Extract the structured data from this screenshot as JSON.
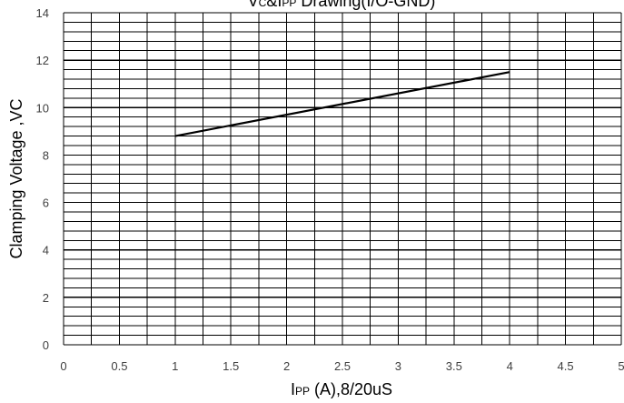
{
  "chart_data": {
    "type": "line",
    "title": {
      "parts": [
        {
          "text": "V",
          "small": false
        },
        {
          "text": "C",
          "small": true
        },
        {
          "text": "&I",
          "small": false
        },
        {
          "text": "PP",
          "small": true
        },
        {
          "text": " Drawing(I/O-GND)",
          "small": false
        }
      ]
    },
    "xlabel": {
      "parts": [
        {
          "text": "I",
          "small": false
        },
        {
          "text": "PP",
          "small": true
        },
        {
          "text": " (A),8/20uS",
          "small": false
        }
      ]
    },
    "ylabel": "Clamping Voltage ,VC",
    "xlim": [
      0,
      5
    ],
    "ylim": [
      0,
      14
    ],
    "x_ticks": [
      0,
      0.5,
      1,
      1.5,
      2,
      2.5,
      3,
      3.5,
      4,
      4.5,
      5
    ],
    "x_tick_labels": [
      "0",
      "0.5",
      "1",
      "1.5",
      "2",
      "2.5",
      "3",
      "3.5",
      "4",
      "4.5",
      "5"
    ],
    "y_ticks": [
      0,
      2,
      4,
      6,
      8,
      10,
      12,
      14
    ],
    "y_tick_labels": [
      "0",
      "2",
      "4",
      "6",
      "8",
      "10",
      "12",
      "14"
    ],
    "x_minor_step": 0.25,
    "y_minor_step": 0.4,
    "grid": true,
    "series": [
      {
        "x": [
          1,
          4
        ],
        "y": [
          8.8,
          11.5
        ],
        "color": "#000000"
      }
    ]
  }
}
